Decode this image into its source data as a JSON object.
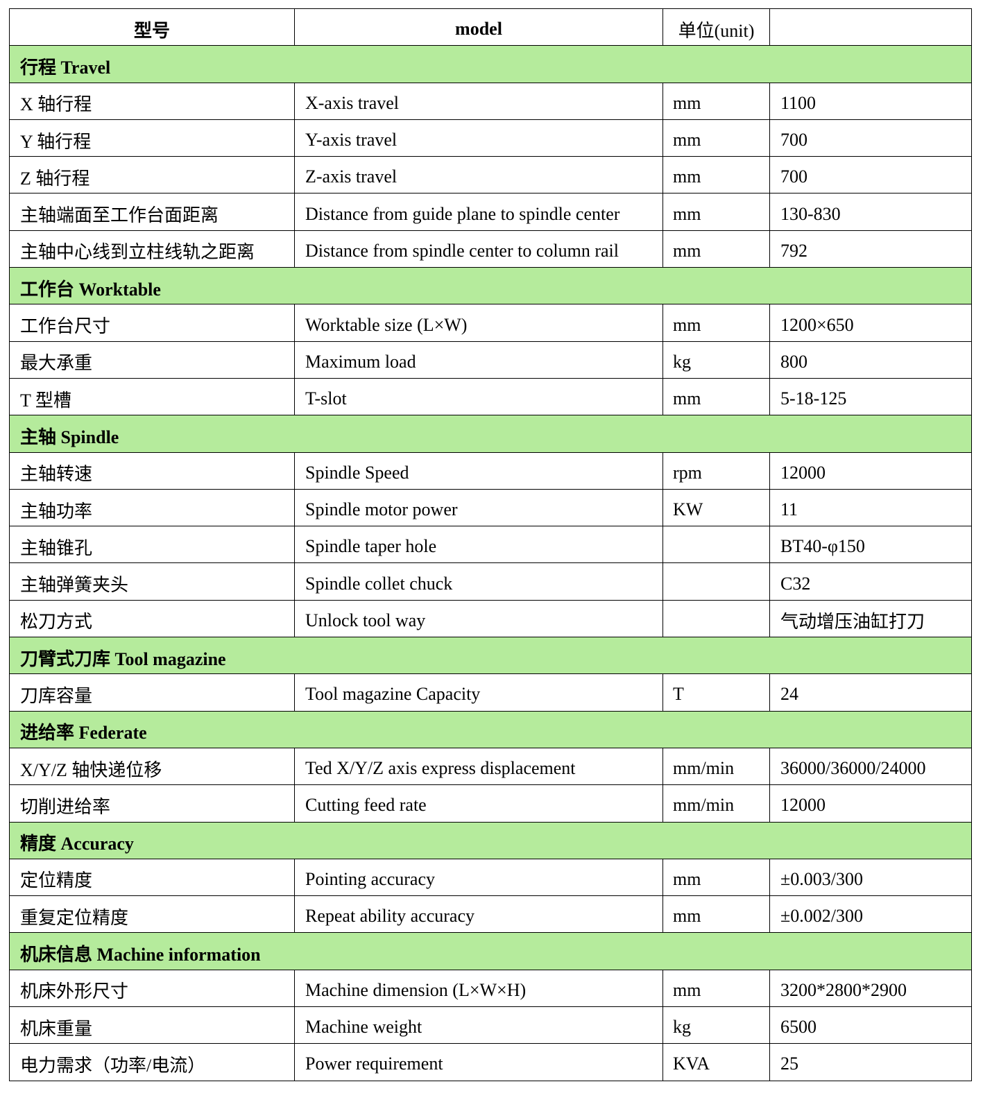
{
  "header": {
    "col1": "型号",
    "col2": "model",
    "col3": "单位(unit)",
    "col4": ""
  },
  "section_color": "#b5eb9c",
  "sections": [
    {
      "title": "行程 Travel",
      "rows": [
        [
          "X 轴行程",
          "X-axis travel",
          "mm",
          "1100"
        ],
        [
          "Y 轴行程",
          "Y-axis travel",
          "mm",
          "700"
        ],
        [
          "Z 轴行程",
          "Z-axis travel",
          "mm",
          "700"
        ],
        [
          "主轴端面至工作台面距离",
          "Distance from guide plane to spindle center",
          "mm",
          "130-830"
        ],
        [
          "主轴中心线到立柱线轨之距离",
          "Distance from spindle center to column rail",
          "mm",
          "792"
        ]
      ]
    },
    {
      "title": "工作台 Worktable",
      "rows": [
        [
          "工作台尺寸",
          "Worktable size (L×W)",
          "mm",
          "1200×650"
        ],
        [
          "最大承重",
          "Maximum load",
          "kg",
          "800"
        ],
        [
          "T 型槽",
          "T-slot",
          "mm",
          "5-18-125"
        ]
      ]
    },
    {
      "title": "主轴 Spindle",
      "rows": [
        [
          "主轴转速",
          "Spindle Speed",
          "rpm",
          "12000"
        ],
        [
          "主轴功率",
          "Spindle motor power",
          "KW",
          "11"
        ],
        [
          "主轴锥孔",
          "Spindle taper hole",
          "",
          "BT40-φ150"
        ],
        [
          "主轴弹簧夹头",
          "Spindle collet chuck",
          "",
          "C32"
        ],
        [
          "松刀方式",
          "Unlock tool way",
          "",
          "气动增压油缸打刀"
        ]
      ]
    },
    {
      "title": "刀臂式刀库 Tool magazine",
      "rows": [
        [
          "刀库容量",
          "Tool magazine Capacity",
          "T",
          "24"
        ]
      ]
    },
    {
      "title": "进给率 Federate",
      "rows": [
        [
          "X/Y/Z 轴快递位移",
          "Ted X/Y/Z axis express displacement",
          "mm/min",
          "36000/36000/24000"
        ],
        [
          "切削进给率",
          "Cutting feed rate",
          "mm/min",
          "12000"
        ]
      ]
    },
    {
      "title": "精度 Accuracy",
      "rows": [
        [
          "定位精度",
          "Pointing accuracy",
          "mm",
          "±0.003/300"
        ],
        [
          "重复定位精度",
          "Repeat ability accuracy",
          "mm",
          "±0.002/300"
        ]
      ]
    },
    {
      "title": "机床信息 Machine information",
      "rows": [
        [
          "机床外形尺寸",
          "Machine dimension (L×W×H)",
          "mm",
          "3200*2800*2900"
        ],
        [
          "机床重量",
          "Machine weight",
          "kg",
          "6500"
        ],
        [
          "电力需求（功率/电流）",
          "Power requirement",
          "KVA",
          "25"
        ]
      ]
    }
  ]
}
